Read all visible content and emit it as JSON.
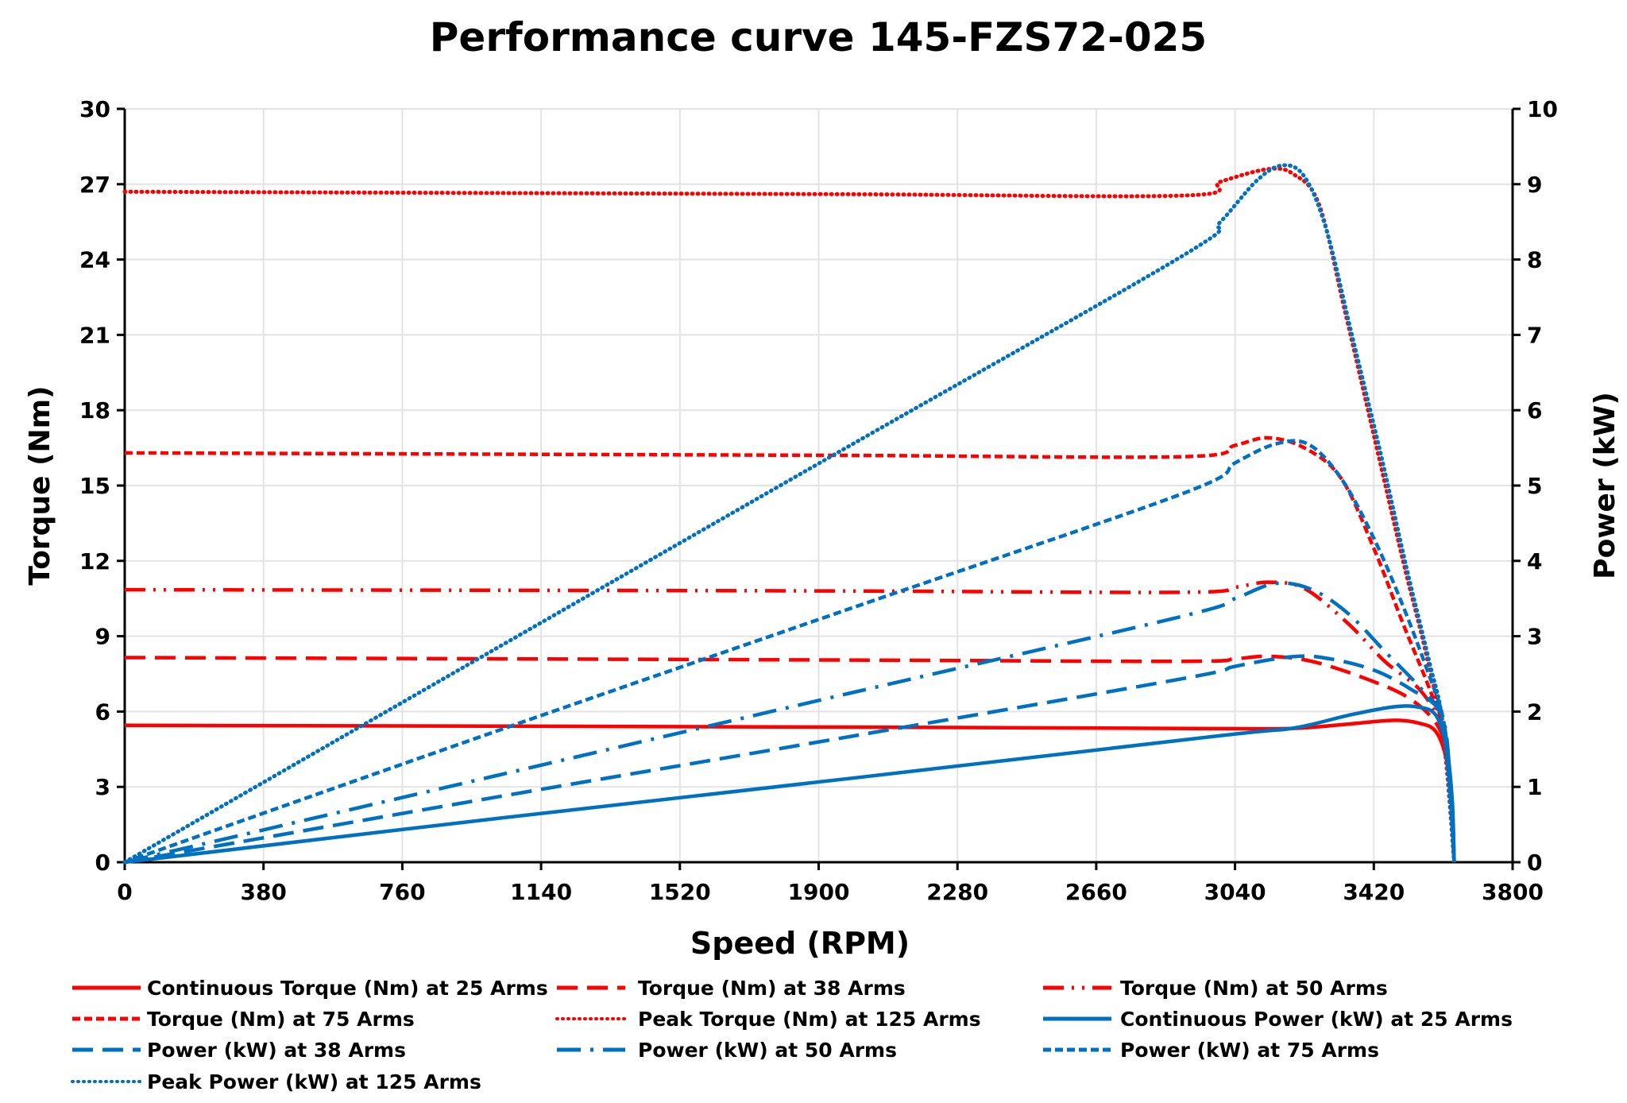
{
  "chart_data": {
    "type": "line",
    "title": "Performance curve 145-FZS72-025",
    "xlabel": "Speed (RPM)",
    "ylabel": "Torque (Nm)",
    "y2label": "Power (kW)",
    "xlim": [
      0,
      3800
    ],
    "ylim": [
      0,
      30
    ],
    "y2lim": [
      0,
      10
    ],
    "xticks": [
      0,
      380,
      760,
      1140,
      1520,
      1900,
      2280,
      2660,
      3040,
      3420,
      3800
    ],
    "yticks": [
      0,
      3,
      6,
      9,
      12,
      15,
      18,
      21,
      24,
      27,
      30
    ],
    "y2ticks": [
      0,
      1,
      2,
      3,
      4,
      5,
      6,
      7,
      8,
      9,
      10
    ],
    "grid": true,
    "legend_position": "bottom",
    "colors": {
      "torque": "#ff0000",
      "power": "#0070c0"
    },
    "series": [
      {
        "name": "Continuous Torque (Nm) at 25 Arms",
        "axis": "left",
        "color": "#ff0000",
        "style": "solid",
        "points": [
          [
            0,
            5.45
          ],
          [
            1000,
            5.42
          ],
          [
            2000,
            5.38
          ],
          [
            3000,
            5.32
          ],
          [
            3200,
            5.33
          ],
          [
            3350,
            5.5
          ],
          [
            3470,
            5.65
          ],
          [
            3540,
            5.55
          ],
          [
            3590,
            5.2
          ],
          [
            3620,
            4.0
          ],
          [
            3635,
            2.0
          ],
          [
            3640,
            0
          ]
        ]
      },
      {
        "name": "Torque (Nm) at 38 Arms",
        "axis": "left",
        "color": "#ff0000",
        "style": "long-dash",
        "points": [
          [
            0,
            8.15
          ],
          [
            1000,
            8.1
          ],
          [
            2000,
            8.05
          ],
          [
            2900,
            8.0
          ],
          [
            3040,
            8.1
          ],
          [
            3130,
            8.2
          ],
          [
            3250,
            8.0
          ],
          [
            3400,
            7.3
          ],
          [
            3520,
            6.5
          ],
          [
            3600,
            5.3
          ],
          [
            3625,
            3.5
          ],
          [
            3640,
            0
          ]
        ]
      },
      {
        "name": "Torque (Nm) at 50 Arms",
        "axis": "left",
        "color": "#ff0000",
        "style": "dash-dot-dot",
        "points": [
          [
            0,
            10.85
          ],
          [
            1000,
            10.83
          ],
          [
            2000,
            10.8
          ],
          [
            2900,
            10.75
          ],
          [
            3040,
            10.95
          ],
          [
            3130,
            11.15
          ],
          [
            3230,
            10.9
          ],
          [
            3350,
            9.5
          ],
          [
            3450,
            8.0
          ],
          [
            3550,
            6.8
          ],
          [
            3610,
            5.2
          ],
          [
            3630,
            3
          ],
          [
            3640,
            0
          ]
        ]
      },
      {
        "name": "Torque (Nm) at 75 Arms",
        "axis": "left",
        "color": "#ff0000",
        "style": "short-dash",
        "points": [
          [
            0,
            16.3
          ],
          [
            1000,
            16.25
          ],
          [
            2000,
            16.2
          ],
          [
            2900,
            16.15
          ],
          [
            3040,
            16.6
          ],
          [
            3130,
            16.9
          ],
          [
            3230,
            16.5
          ],
          [
            3330,
            15.3
          ],
          [
            3420,
            12.5
          ],
          [
            3500,
            9.5
          ],
          [
            3570,
            7
          ],
          [
            3610,
            5.3
          ],
          [
            3630,
            3
          ],
          [
            3640,
            0
          ]
        ]
      },
      {
        "name": "Peak Torque (Nm) at 125 Arms",
        "axis": "left",
        "color": "#ff0000",
        "style": "dotted",
        "points": [
          [
            0,
            26.7
          ],
          [
            1000,
            26.65
          ],
          [
            2000,
            26.6
          ],
          [
            2900,
            26.55
          ],
          [
            3000,
            27.1
          ],
          [
            3130,
            27.6
          ],
          [
            3200,
            27.4
          ],
          [
            3270,
            26.2
          ],
          [
            3340,
            22
          ],
          [
            3420,
            17
          ],
          [
            3500,
            12
          ],
          [
            3560,
            8.5
          ],
          [
            3610,
            5
          ],
          [
            3640,
            0
          ]
        ]
      },
      {
        "name": "Continuous Power (kW) at 25 Arms",
        "axis": "right",
        "color": "#0070c0",
        "style": "solid",
        "points": [
          [
            0,
            0
          ],
          [
            1000,
            0.57
          ],
          [
            2000,
            1.12
          ],
          [
            3000,
            1.68
          ],
          [
            3200,
            1.78
          ],
          [
            3350,
            1.95
          ],
          [
            3470,
            2.06
          ],
          [
            3540,
            2.06
          ],
          [
            3590,
            1.95
          ],
          [
            3620,
            1.5
          ],
          [
            3635,
            0.8
          ],
          [
            3640,
            0
          ]
        ]
      },
      {
        "name": "Power (kW) at 38 Arms",
        "axis": "right",
        "color": "#0070c0",
        "style": "long-dash",
        "points": [
          [
            0,
            0
          ],
          [
            1000,
            0.85
          ],
          [
            2000,
            1.68
          ],
          [
            2900,
            2.44
          ],
          [
            3040,
            2.6
          ],
          [
            3200,
            2.73
          ],
          [
            3300,
            2.7
          ],
          [
            3420,
            2.55
          ],
          [
            3520,
            2.3
          ],
          [
            3600,
            2.0
          ],
          [
            3625,
            1.3
          ],
          [
            3640,
            0
          ]
        ]
      },
      {
        "name": "Power (kW) at 50 Arms",
        "axis": "right",
        "color": "#0070c0",
        "style": "dash-dot",
        "points": [
          [
            0,
            0
          ],
          [
            1000,
            1.13
          ],
          [
            2000,
            2.26
          ],
          [
            2900,
            3.27
          ],
          [
            3040,
            3.5
          ],
          [
            3150,
            3.7
          ],
          [
            3250,
            3.62
          ],
          [
            3350,
            3.3
          ],
          [
            3450,
            2.8
          ],
          [
            3550,
            2.3
          ],
          [
            3610,
            1.9
          ],
          [
            3630,
            1.0
          ],
          [
            3640,
            0
          ]
        ]
      },
      {
        "name": "Power (kW) at 75 Arms",
        "axis": "right",
        "color": "#0070c0",
        "style": "short-dash",
        "points": [
          [
            0,
            0
          ],
          [
            1000,
            1.71
          ],
          [
            2000,
            3.39
          ],
          [
            2900,
            4.9
          ],
          [
            3040,
            5.3
          ],
          [
            3150,
            5.55
          ],
          [
            3240,
            5.55
          ],
          [
            3330,
            5.1
          ],
          [
            3420,
            4.3
          ],
          [
            3500,
            3.4
          ],
          [
            3570,
            2.5
          ],
          [
            3610,
            1.9
          ],
          [
            3630,
            1.0
          ],
          [
            3640,
            0
          ]
        ]
      },
      {
        "name": "Peak Power (kW) at 125 Arms",
        "axis": "right",
        "color": "#0070c0",
        "style": "dotted",
        "points": [
          [
            0,
            0
          ],
          [
            1000,
            2.79
          ],
          [
            2000,
            5.57
          ],
          [
            2900,
            8.06
          ],
          [
            3000,
            8.5
          ],
          [
            3100,
            9.05
          ],
          [
            3170,
            9.25
          ],
          [
            3230,
            9.1
          ],
          [
            3290,
            8.4
          ],
          [
            3360,
            7.0
          ],
          [
            3440,
            5.4
          ],
          [
            3510,
            3.9
          ],
          [
            3570,
            2.7
          ],
          [
            3610,
            1.8
          ],
          [
            3640,
            0
          ]
        ]
      }
    ]
  }
}
